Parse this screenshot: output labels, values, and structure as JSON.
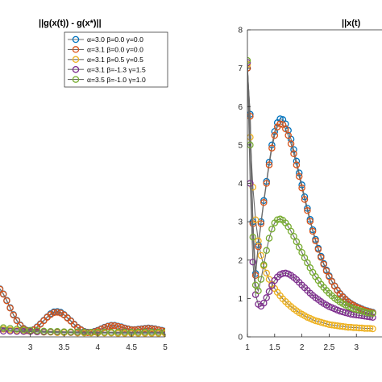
{
  "colors": {
    "s1": "#0072BD",
    "s2": "#D95319",
    "s3": "#EDB120",
    "s4": "#7E2F8E",
    "s5": "#77AC30",
    "axis": "#262626",
    "background": "#ffffff"
  },
  "chart_data": [
    {
      "type": "line",
      "title": "||g(x(t)) - g(x*)||",
      "xlabel": "",
      "ylabel": "",
      "xlim": [
        2.5,
        5
      ],
      "ylim": [
        0,
        8
      ],
      "xticks": [
        3,
        3.5,
        4,
        4.5,
        5
      ],
      "xtick_labels": [
        "3",
        "3.5",
        "4",
        "4.5",
        "5"
      ],
      "grid": false,
      "legend_position": "top-right",
      "legend_entries": [
        "α=3.0  β=0.0  γ=0.0",
        "α=3.1  β=0.0  γ=0.0",
        "α=3.1  β=0.5  γ=0.5",
        "α=3.1  β=-1.3  γ=1.5",
        "α=3.5  β=-1.0  γ=1.0"
      ],
      "series": [
        {
          "name": "α=3.0  β=0.0  γ=0.0",
          "x": [
            2.5,
            2.55,
            2.6,
            2.65,
            2.7,
            2.75,
            2.8,
            2.85,
            2.9,
            2.95,
            3.0,
            3.05,
            3.1,
            3.15,
            3.2,
            3.25,
            3.3,
            3.35,
            3.4,
            3.45,
            3.5,
            3.55,
            3.6,
            3.65,
            3.7,
            3.75,
            3.8,
            3.85,
            3.9,
            3.95,
            4.0,
            4.05,
            4.1,
            4.15,
            4.2,
            4.25,
            4.3,
            4.35,
            4.4,
            4.45,
            4.5,
            4.55,
            4.6,
            4.65,
            4.7,
            4.75,
            4.8,
            4.85,
            4.9,
            4.95,
            5.0
          ],
          "y": [
            1.3,
            1.25,
            1.12,
            0.95,
            0.76,
            0.58,
            0.43,
            0.31,
            0.22,
            0.17,
            0.16,
            0.19,
            0.26,
            0.34,
            0.43,
            0.52,
            0.6,
            0.65,
            0.66,
            0.64,
            0.58,
            0.5,
            0.42,
            0.33,
            0.25,
            0.19,
            0.14,
            0.12,
            0.12,
            0.14,
            0.17,
            0.21,
            0.25,
            0.28,
            0.3,
            0.3,
            0.28,
            0.26,
            0.23,
            0.21,
            0.19,
            0.19,
            0.2,
            0.21,
            0.22,
            0.23,
            0.22,
            0.21,
            0.19,
            0.17,
            0.15
          ]
        },
        {
          "name": "α=3.1  β=0.0  γ=0.0",
          "x": [
            2.5,
            2.55,
            2.6,
            2.65,
            2.7,
            2.75,
            2.8,
            2.85,
            2.9,
            2.95,
            3.0,
            3.05,
            3.1,
            3.15,
            3.2,
            3.25,
            3.3,
            3.35,
            3.4,
            3.45,
            3.5,
            3.55,
            3.6,
            3.65,
            3.7,
            3.75,
            3.8,
            3.85,
            3.9,
            3.95,
            4.0,
            4.05,
            4.1,
            4.15,
            4.2,
            4.25,
            4.3,
            4.35,
            4.4,
            4.45,
            4.5,
            4.55,
            4.6,
            4.65,
            4.7,
            4.75,
            4.8,
            4.85,
            4.9,
            4.95,
            5.0
          ],
          "y": [
            1.3,
            1.24,
            1.11,
            0.94,
            0.75,
            0.57,
            0.42,
            0.3,
            0.21,
            0.16,
            0.15,
            0.18,
            0.25,
            0.33,
            0.42,
            0.51,
            0.58,
            0.63,
            0.64,
            0.62,
            0.57,
            0.49,
            0.41,
            0.32,
            0.24,
            0.18,
            0.13,
            0.11,
            0.11,
            0.13,
            0.16,
            0.2,
            0.24,
            0.27,
            0.29,
            0.29,
            0.27,
            0.25,
            0.22,
            0.2,
            0.18,
            0.18,
            0.19,
            0.2,
            0.21,
            0.22,
            0.21,
            0.2,
            0.18,
            0.16,
            0.14
          ]
        },
        {
          "name": "α=3.1  β=0.5  γ=0.5",
          "x": [
            2.5,
            2.6,
            2.7,
            2.8,
            2.9,
            3.0,
            3.1,
            3.2,
            3.3,
            3.4,
            3.5,
            3.6,
            3.7,
            3.8,
            3.9,
            4.0,
            4.1,
            4.2,
            4.3,
            4.4,
            4.5,
            4.6,
            4.7,
            4.8,
            4.9,
            5.0
          ],
          "y": [
            0.22,
            0.2,
            0.18,
            0.16,
            0.15,
            0.14,
            0.13,
            0.12,
            0.12,
            0.11,
            0.11,
            0.11,
            0.1,
            0.1,
            0.1,
            0.1,
            0.1,
            0.1,
            0.09,
            0.09,
            0.09,
            0.09,
            0.09,
            0.09,
            0.09,
            0.09
          ]
        },
        {
          "name": "α=3.1  β=-1.3  γ=1.5",
          "x": [
            2.5,
            2.6,
            2.7,
            2.8,
            2.9,
            3.0,
            3.1,
            3.2,
            3.3,
            3.4,
            3.5,
            3.6,
            3.7,
            3.8,
            3.9,
            4.0,
            4.1,
            4.2,
            4.3,
            4.4,
            4.5,
            4.6,
            4.7,
            4.8,
            4.9,
            5.0
          ],
          "y": [
            0.16,
            0.15,
            0.15,
            0.14,
            0.14,
            0.14,
            0.13,
            0.13,
            0.13,
            0.13,
            0.13,
            0.12,
            0.12,
            0.12,
            0.12,
            0.12,
            0.12,
            0.12,
            0.12,
            0.12,
            0.12,
            0.12,
            0.12,
            0.12,
            0.12,
            0.12
          ]
        },
        {
          "name": "α=3.5  β=-1.0  γ=1.0",
          "x": [
            2.5,
            2.6,
            2.7,
            2.8,
            2.9,
            3.0,
            3.1,
            3.2,
            3.3,
            3.4,
            3.5,
            3.6,
            3.7,
            3.8,
            3.9,
            4.0,
            4.1,
            4.2,
            4.3,
            4.4,
            4.5,
            4.6,
            4.7,
            4.8,
            4.9,
            5.0
          ],
          "y": [
            0.26,
            0.24,
            0.22,
            0.2,
            0.18,
            0.17,
            0.16,
            0.15,
            0.14,
            0.14,
            0.13,
            0.13,
            0.13,
            0.12,
            0.12,
            0.12,
            0.12,
            0.12,
            0.12,
            0.12,
            0.12,
            0.12,
            0.12,
            0.12,
            0.12,
            0.12
          ]
        }
      ]
    },
    {
      "type": "line",
      "title": "||x(t)",
      "xlabel": "",
      "ylabel": "",
      "xlim": [
        1,
        3.3
      ],
      "ylim": [
        0,
        8
      ],
      "xticks": [
        1,
        1.5,
        2,
        2.5,
        3
      ],
      "xtick_labels": [
        "1",
        "1.5",
        "2",
        "2.5",
        "3"
      ],
      "yticks": [
        0,
        1,
        2,
        3,
        4,
        5,
        6,
        7,
        8
      ],
      "ytick_labels": [
        "0",
        "1",
        "2",
        "3",
        "4",
        "5",
        "6",
        "7",
        "8"
      ],
      "grid": false,
      "series": [
        {
          "name": "α=3.0  β=0.0  γ=0.0",
          "x": [
            1.0,
            1.05,
            1.1,
            1.15,
            1.2,
            1.25,
            1.3,
            1.35,
            1.4,
            1.45,
            1.5,
            1.55,
            1.6,
            1.65,
            1.7,
            1.75,
            1.8,
            1.85,
            1.9,
            1.95,
            2.0,
            2.05,
            2.1,
            2.15,
            2.2,
            2.25,
            2.3,
            2.35,
            2.4,
            2.45,
            2.5,
            2.55,
            2.6,
            2.65,
            2.7,
            2.75,
            2.8,
            2.85,
            2.9,
            2.95,
            3.0,
            3.05,
            3.1,
            3.15,
            3.2,
            3.25,
            3.3
          ],
          "y": [
            7.0,
            5.8,
            3.0,
            1.65,
            2.4,
            3.0,
            3.55,
            4.05,
            4.55,
            5.0,
            5.35,
            5.58,
            5.68,
            5.66,
            5.55,
            5.38,
            5.15,
            4.88,
            4.58,
            4.27,
            3.96,
            3.65,
            3.35,
            3.06,
            2.79,
            2.54,
            2.31,
            2.1,
            1.91,
            1.74,
            1.59,
            1.45,
            1.33,
            1.22,
            1.13,
            1.05,
            0.98,
            0.92,
            0.87,
            0.83,
            0.79,
            0.76,
            0.73,
            0.7,
            0.68,
            0.66,
            0.64
          ]
        },
        {
          "name": "α=3.1  β=0.0  γ=0.0",
          "x": [
            1.0,
            1.05,
            1.1,
            1.15,
            1.2,
            1.25,
            1.3,
            1.35,
            1.4,
            1.45,
            1.5,
            1.55,
            1.6,
            1.65,
            1.7,
            1.75,
            1.8,
            1.85,
            1.9,
            1.95,
            2.0,
            2.05,
            2.1,
            2.15,
            2.2,
            2.25,
            2.3,
            2.35,
            2.4,
            2.45,
            2.5,
            2.55,
            2.6,
            2.65,
            2.7,
            2.75,
            2.8,
            2.85,
            2.9,
            2.95,
            3.0,
            3.05,
            3.1,
            3.15,
            3.2,
            3.25,
            3.3
          ],
          "y": [
            7.0,
            5.75,
            2.95,
            1.6,
            2.35,
            2.95,
            3.5,
            4.0,
            4.48,
            4.92,
            5.25,
            5.47,
            5.55,
            5.53,
            5.42,
            5.25,
            5.03,
            4.77,
            4.48,
            4.18,
            3.88,
            3.58,
            3.29,
            3.01,
            2.75,
            2.5,
            2.28,
            2.07,
            1.89,
            1.72,
            1.57,
            1.44,
            1.32,
            1.21,
            1.12,
            1.04,
            0.97,
            0.91,
            0.86,
            0.82,
            0.78,
            0.75,
            0.72,
            0.69,
            0.67,
            0.65,
            0.63
          ]
        },
        {
          "name": "α=3.1  β=0.5  γ=0.5",
          "x": [
            1.0,
            1.05,
            1.1,
            1.15,
            1.2,
            1.25,
            1.3,
            1.35,
            1.4,
            1.45,
            1.5,
            1.55,
            1.6,
            1.65,
            1.7,
            1.75,
            1.8,
            1.85,
            1.9,
            1.95,
            2.0,
            2.05,
            2.1,
            2.15,
            2.2,
            2.25,
            2.3,
            2.35,
            2.4,
            2.45,
            2.5,
            2.55,
            2.6,
            2.65,
            2.7,
            2.75,
            2.8,
            2.85,
            2.9,
            2.95,
            3.0,
            3.05,
            3.1,
            3.15,
            3.2,
            3.25,
            3.3
          ],
          "y": [
            7.1,
            5.2,
            3.9,
            3.05,
            2.5,
            2.12,
            1.85,
            1.66,
            1.5,
            1.37,
            1.26,
            1.16,
            1.07,
            0.99,
            0.92,
            0.85,
            0.79,
            0.73,
            0.68,
            0.63,
            0.59,
            0.55,
            0.51,
            0.48,
            0.45,
            0.42,
            0.4,
            0.38,
            0.36,
            0.34,
            0.32,
            0.31,
            0.3,
            0.29,
            0.28,
            0.27,
            0.26,
            0.25,
            0.25,
            0.24,
            0.24,
            0.23,
            0.23,
            0.22,
            0.22,
            0.22,
            0.21
          ]
        },
        {
          "name": "α=3.1  β=-1.3  γ=1.5",
          "x": [
            1.0,
            1.05,
            1.1,
            1.15,
            1.2,
            1.25,
            1.3,
            1.35,
            1.4,
            1.45,
            1.5,
            1.55,
            1.6,
            1.65,
            1.7,
            1.75,
            1.8,
            1.85,
            1.9,
            1.95,
            2.0,
            2.05,
            2.1,
            2.15,
            2.2,
            2.25,
            2.3,
            2.35,
            2.4,
            2.45,
            2.5,
            2.55,
            2.6,
            2.65,
            2.7,
            2.75,
            2.8,
            2.85,
            2.9,
            2.95,
            3.0,
            3.05,
            3.1,
            3.15,
            3.2,
            3.25,
            3.3
          ],
          "y": [
            7.15,
            4.0,
            1.95,
            1.1,
            0.85,
            0.8,
            0.88,
            1.02,
            1.18,
            1.34,
            1.47,
            1.56,
            1.62,
            1.65,
            1.66,
            1.64,
            1.6,
            1.55,
            1.49,
            1.42,
            1.35,
            1.28,
            1.21,
            1.14,
            1.08,
            1.02,
            0.97,
            0.92,
            0.87,
            0.83,
            0.79,
            0.76,
            0.73,
            0.7,
            0.67,
            0.65,
            0.63,
            0.61,
            0.59,
            0.58,
            0.57,
            0.56,
            0.55,
            0.54,
            0.53,
            0.52,
            0.51
          ]
        },
        {
          "name": "α=3.5  β=-1.0  γ=1.0",
          "x": [
            1.0,
            1.05,
            1.1,
            1.15,
            1.2,
            1.25,
            1.3,
            1.35,
            1.4,
            1.45,
            1.5,
            1.55,
            1.6,
            1.65,
            1.7,
            1.75,
            1.8,
            1.85,
            1.9,
            1.95,
            2.0,
            2.05,
            2.1,
            2.15,
            2.2,
            2.25,
            2.3,
            2.35,
            2.4,
            2.45,
            2.5,
            2.55,
            2.6,
            2.65,
            2.7,
            2.75,
            2.8,
            2.85,
            2.9,
            2.95,
            3.0,
            3.05,
            3.1,
            3.15,
            3.2,
            3.25,
            3.3
          ],
          "y": [
            7.2,
            5.0,
            2.6,
            1.35,
            1.2,
            1.5,
            1.88,
            2.25,
            2.57,
            2.81,
            2.97,
            3.05,
            3.07,
            3.04,
            2.97,
            2.87,
            2.75,
            2.62,
            2.48,
            2.34,
            2.2,
            2.06,
            1.93,
            1.8,
            1.68,
            1.57,
            1.47,
            1.37,
            1.29,
            1.21,
            1.14,
            1.07,
            1.01,
            0.96,
            0.91,
            0.87,
            0.83,
            0.79,
            0.76,
            0.73,
            0.71,
            0.69,
            0.67,
            0.65,
            0.63,
            0.62,
            0.61
          ]
        }
      ]
    }
  ]
}
